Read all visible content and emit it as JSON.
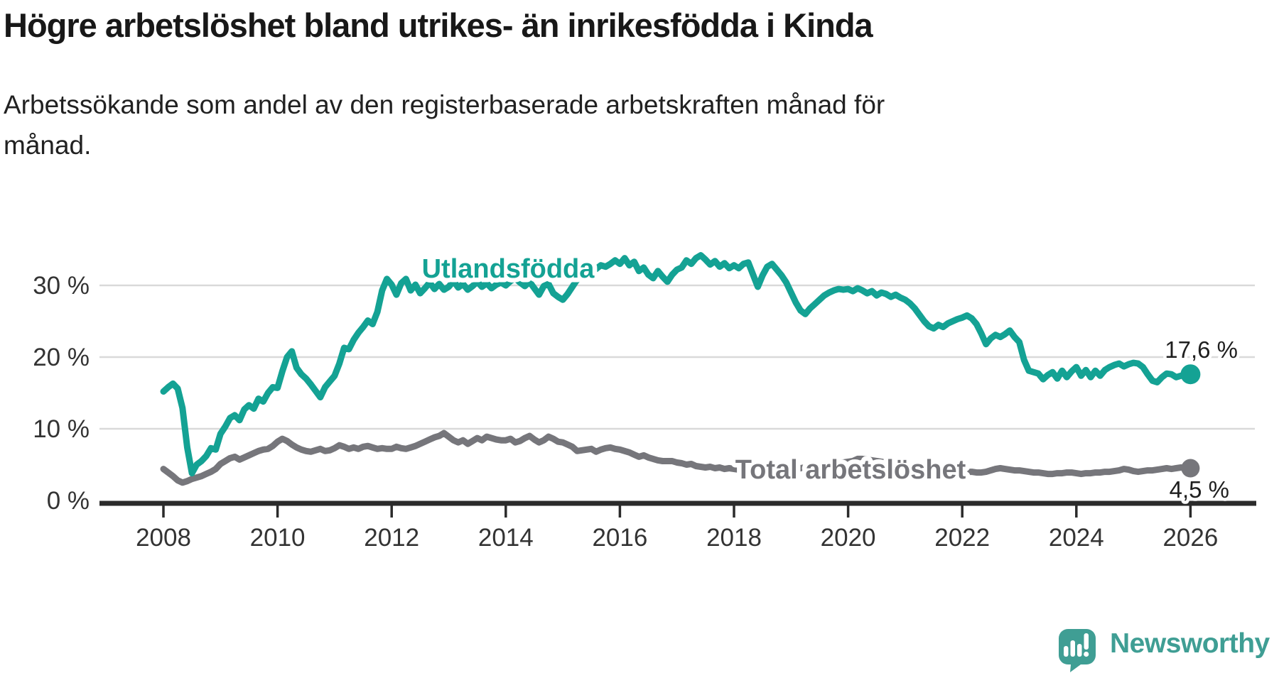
{
  "title": "Högre arbetslöshet bland utrikes- än inrikesfödda i Kinda",
  "subtitle_lines": [
    "Arbetssökande som andel av den registerbaserade arbetskraften månad för",
    "månad."
  ],
  "colors": {
    "accent_teal": "#14a294",
    "series_gray": "#76767b",
    "grid": "#d9d9d9",
    "axis": "#2b2b2b",
    "tick_label": "#333333",
    "value_label": "#1f1f1f",
    "title_text": "#181818",
    "logo_teal": "#3f9e94"
  },
  "chart_data": {
    "type": "line",
    "x_start": 2008.0,
    "x_end": 2026.0,
    "x_step": 0.0833,
    "x_ticks": [
      2008,
      2010,
      2012,
      2014,
      2016,
      2018,
      2020,
      2022,
      2024,
      2026
    ],
    "y_ticks": [
      0,
      10,
      20,
      30
    ],
    "y_tick_suffix": " %",
    "y_gridlines": [
      10,
      20,
      30
    ],
    "ylim": [
      0,
      36
    ],
    "grid": "horizontal",
    "legend_position": "inline-labels",
    "series": [
      {
        "name": "Utlandsfödda",
        "color": "#14a294",
        "end_value": 17.6,
        "end_label": "17,6 %",
        "values": [
          15.2,
          15.8,
          16.3,
          15.6,
          12.9,
          7.4,
          3.8,
          5.0,
          5.5,
          6.2,
          7.3,
          7.1,
          9.3,
          10.3,
          11.5,
          11.9,
          11.2,
          12.7,
          13.3,
          12.8,
          14.2,
          13.8,
          15.0,
          15.8,
          15.7,
          18.0,
          20.0,
          20.8,
          18.5,
          17.6,
          17.0,
          16.2,
          15.3,
          14.4,
          15.8,
          16.6,
          17.4,
          19.1,
          21.3,
          21.1,
          22.4,
          23.4,
          24.2,
          25.1,
          24.6,
          26.3,
          29.3,
          30.9,
          30.1,
          28.7,
          30.3,
          30.9,
          29.3,
          30.1,
          28.9,
          29.6,
          30.4,
          29.5,
          30.2,
          29.4,
          29.8,
          30.6,
          29.7,
          30.2,
          29.4,
          29.9,
          30.5,
          29.8,
          30.3,
          29.6,
          30.1,
          30.4,
          30.0,
          30.6,
          31.0,
          30.4,
          29.9,
          30.5,
          29.6,
          28.7,
          29.9,
          30.2,
          28.9,
          28.4,
          28.0,
          28.8,
          29.8,
          30.8,
          31.4,
          32.0,
          31.5,
          32.3,
          32.8,
          32.6,
          33.0,
          33.5,
          33.0,
          33.8,
          32.8,
          33.3,
          32.0,
          32.5,
          31.5,
          31.0,
          32.0,
          31.2,
          30.5,
          31.5,
          32.2,
          32.5,
          33.5,
          33.0,
          33.8,
          34.2,
          33.6,
          32.9,
          33.4,
          32.6,
          33.1,
          32.4,
          32.8,
          32.4,
          33.0,
          33.2,
          31.5,
          29.8,
          31.4,
          32.6,
          33.0,
          32.2,
          31.4,
          30.4,
          29.0,
          27.6,
          26.5,
          26.0,
          26.8,
          27.4,
          28.0,
          28.6,
          29.0,
          29.3,
          29.5,
          29.4,
          29.5,
          29.2,
          29.6,
          29.3,
          28.9,
          29.2,
          28.6,
          29.0,
          28.8,
          28.4,
          28.7,
          28.3,
          28.0,
          27.5,
          26.8,
          25.9,
          25.0,
          24.3,
          24.0,
          24.5,
          24.2,
          24.7,
          25.0,
          25.3,
          25.5,
          25.8,
          25.4,
          24.6,
          23.3,
          21.8,
          22.6,
          23.1,
          22.8,
          23.2,
          23.7,
          22.8,
          22.1,
          19.6,
          18.1,
          17.9,
          17.7,
          16.9,
          17.5,
          17.9,
          17.0,
          18.1,
          17.2,
          18.0,
          18.6,
          17.4,
          18.2,
          17.2,
          18.1,
          17.4,
          18.2,
          18.6,
          18.9,
          19.1,
          18.7,
          19.0,
          19.2,
          19.1,
          18.6,
          17.6,
          16.7,
          16.5,
          17.2,
          17.7,
          17.6,
          17.2,
          17.4,
          17.5,
          17.6
        ]
      },
      {
        "name": "Total arbetslöshet",
        "color": "#76767b",
        "end_value": 4.5,
        "end_label": "4,5 %",
        "values": [
          4.4,
          3.9,
          3.4,
          2.8,
          2.5,
          2.7,
          3.0,
          3.2,
          3.4,
          3.7,
          4.0,
          4.4,
          5.1,
          5.5,
          5.9,
          6.1,
          5.7,
          6.0,
          6.3,
          6.6,
          6.9,
          7.1,
          7.2,
          7.6,
          8.2,
          8.6,
          8.3,
          7.8,
          7.4,
          7.1,
          6.9,
          6.8,
          7.0,
          7.2,
          6.9,
          7.0,
          7.3,
          7.7,
          7.5,
          7.2,
          7.4,
          7.2,
          7.5,
          7.6,
          7.4,
          7.2,
          7.3,
          7.2,
          7.2,
          7.5,
          7.3,
          7.2,
          7.4,
          7.6,
          7.9,
          8.2,
          8.5,
          8.8,
          9.0,
          9.4,
          8.9,
          8.4,
          8.1,
          8.4,
          7.9,
          8.3,
          8.7,
          8.4,
          8.9,
          8.7,
          8.5,
          8.4,
          8.4,
          8.6,
          8.1,
          8.3,
          8.7,
          9.0,
          8.5,
          8.1,
          8.4,
          8.9,
          8.6,
          8.2,
          8.1,
          7.8,
          7.5,
          6.9,
          7.0,
          7.1,
          7.2,
          6.8,
          7.1,
          7.3,
          7.4,
          7.2,
          7.1,
          6.9,
          6.7,
          6.4,
          6.1,
          6.3,
          6.0,
          5.8,
          5.6,
          5.5,
          5.5,
          5.5,
          5.3,
          5.2,
          5.0,
          5.1,
          4.8,
          4.7,
          4.6,
          4.7,
          4.5,
          4.6,
          4.4,
          4.5,
          4.4,
          4.3,
          4.2,
          4.1,
          4.0,
          4.0,
          3.9,
          4.0,
          4.1,
          4.0,
          4.1,
          4.2,
          4.3,
          4.4,
          4.5,
          4.6,
          4.7,
          4.8,
          4.9,
          5.0,
          5.0,
          5.1,
          5.2,
          5.3,
          5.4,
          5.5,
          5.8,
          5.8,
          5.7,
          5.6,
          5.5,
          5.4,
          5.3,
          5.2,
          5.1,
          5.0,
          4.9,
          4.8,
          4.7,
          4.6,
          4.5,
          4.4,
          4.4,
          4.3,
          4.3,
          4.2,
          4.2,
          4.1,
          4.1,
          4.0,
          4.0,
          3.9,
          3.9,
          4.0,
          4.2,
          4.4,
          4.5,
          4.4,
          4.3,
          4.2,
          4.2,
          4.1,
          4.0,
          3.9,
          3.9,
          3.8,
          3.7,
          3.7,
          3.8,
          3.8,
          3.9,
          3.9,
          3.8,
          3.7,
          3.8,
          3.8,
          3.9,
          3.9,
          4.0,
          4.0,
          4.1,
          4.2,
          4.4,
          4.3,
          4.1,
          4.0,
          4.1,
          4.2,
          4.2,
          4.3,
          4.4,
          4.5,
          4.4,
          4.5,
          4.6,
          4.5,
          4.5
        ]
      }
    ]
  },
  "branding": {
    "logo_text": "Newsworthy",
    "logo_icon": "bar-chart-speech-bubble-icon"
  }
}
